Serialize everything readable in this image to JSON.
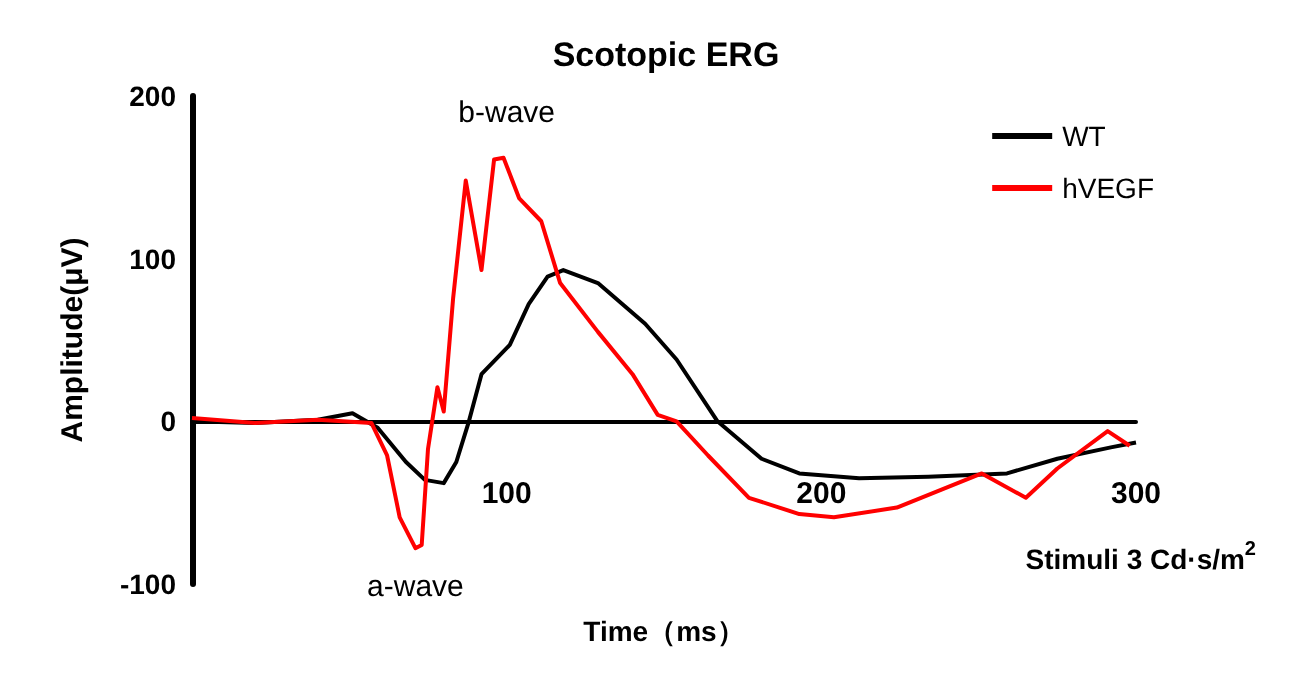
{
  "chart_data": {
    "type": "line",
    "title": "Scotopic ERG",
    "xlabel": "Time（ms）",
    "ylabel": "Amplitude(μV)",
    "annotations": [
      {
        "text": "b-wave",
        "x": 100,
        "y": 162
      },
      {
        "text": "a-wave",
        "x": 71,
        "y": -78
      },
      "Stimuli 3 Cd·s/m$^{2}$"
    ],
    "xlim": [
      0,
      300
    ],
    "xticks": [
      100,
      200,
      300
    ],
    "ylim": [
      -100,
      200
    ],
    "yticks": [
      -100,
      0,
      100,
      200
    ],
    "grid": false,
    "legend": "top right",
    "marker": "none",
    "line_style": "solid",
    "series": [
      {
        "name": "WT",
        "color": "#000000",
        "x": [
          0,
          20,
          40,
          51,
          59,
          68,
          74,
          80,
          84,
          88,
          92,
          101,
          107,
          113,
          118,
          129,
          144,
          154,
          167,
          181,
          193,
          212,
          234,
          259,
          275,
          292,
          300
        ],
        "values": [
          0,
          -1,
          1,
          5,
          -4,
          -25,
          -36,
          -38,
          -25,
          0,
          29,
          47,
          72,
          89,
          93,
          85,
          60,
          38,
          0,
          -23,
          -32,
          -35,
          -34,
          -32,
          -23,
          -16,
          -13
        ]
      },
      {
        "name": "hVEGF",
        "color": "#ff0000",
        "x": [
          0,
          20,
          40,
          57,
          62,
          66,
          71,
          73,
          75,
          78,
          80,
          83,
          87,
          92,
          96,
          99,
          104,
          111,
          117,
          129,
          140,
          148,
          154,
          164,
          177,
          193,
          204,
          224,
          251,
          265,
          275,
          291,
          298
        ],
        "values": [
          2,
          -1,
          1,
          -1,
          -21,
          -59,
          -78,
          -76,
          -17,
          21,
          6,
          76,
          148,
          93,
          161,
          162,
          137,
          123,
          85,
          55,
          29,
          4,
          0,
          -21,
          -47,
          -57,
          -59,
          -53,
          -32,
          -47,
          -29,
          -6,
          -15
        ]
      }
    ]
  }
}
